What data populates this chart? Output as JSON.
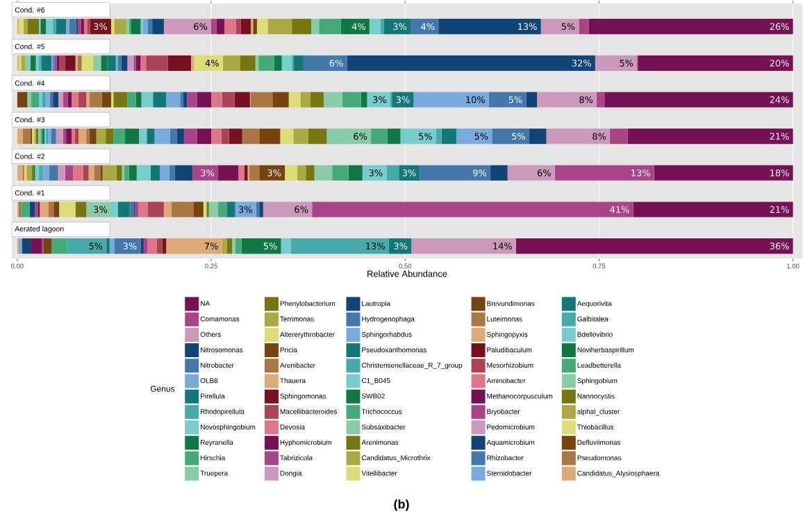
{
  "chart_data": {
    "type": "bar",
    "orientation": "horizontal",
    "stacked": true,
    "categories": [
      "Cond. #6",
      "Cond. #5",
      "Cond. #4",
      "Cond. #3",
      "Cond. #2",
      "Cond. #1",
      "Aerated lagoon"
    ],
    "xlabel": "Relative Abundance",
    "legend_title": "Genus",
    "legend": "bottom",
    "grid": "x",
    "xlim": [
      -0.007,
      1.012
    ],
    "xticks": [
      {
        "value": 0,
        "label": "0.00"
      },
      {
        "value": 0.25,
        "label": "0.25"
      },
      {
        "value": 0.5,
        "label": "0.50"
      },
      {
        "value": 0.75,
        "label": "0.75"
      },
      {
        "value": 1,
        "label": "1.00"
      }
    ],
    "annotations": [
      "(b)"
    ],
    "series": [
      {
        "name": "Candidatus_Alysiosphaera",
        "color": "#ddaa77",
        "values": [
          0.002,
          0.002,
          null,
          0.007,
          0.007,
          0.002,
          0.002
        ]
      },
      {
        "name": "Pseudomonas",
        "color": "#aa7744",
        "values": [
          null,
          null,
          null,
          0.01,
          0.002,
          0.003,
          null
        ]
      },
      {
        "name": "Defluviimonas",
        "color": "#774411",
        "values": [
          null,
          null,
          0.013,
          0.002,
          null,
          null,
          null
        ]
      },
      {
        "name": "Thiobacillus",
        "color": "#dddd77",
        "values": [
          0.006,
          0.003,
          null,
          0.003,
          0.003,
          null,
          null
        ]
      },
      {
        "name": "alphal_cluster",
        "color": "#aaaa44",
        "values": [
          0.005,
          0.005,
          null,
          0.002,
          0.007,
          null,
          null
        ]
      },
      {
        "name": "Nannocystis",
        "color": "#777711",
        "values": [
          0.015,
          null,
          null,
          0.003,
          0.002,
          null,
          null
        ]
      },
      {
        "name": "Sphingobium",
        "color": "#88ccaa",
        "values": [
          0.002,
          0.007,
          0.005,
          0.003,
          null,
          null,
          null
        ]
      },
      {
        "name": "Leadbetterella",
        "color": "#44aa77",
        "values": [
          null,
          null,
          0.01,
          0.002,
          null,
          0.011,
          null
        ]
      },
      {
        "name": "Noviherbaspirillum",
        "color": "#117744",
        "values": [
          0.007,
          0.007,
          null,
          0.003,
          0.002,
          null,
          null
        ]
      },
      {
        "name": "Bdellovibrio",
        "color": "#77cccc",
        "values": [
          0.009,
          0.004,
          0.004,
          0.002,
          0.005,
          null,
          null
        ]
      },
      {
        "name": "Galbitalea",
        "color": "#44aaaa",
        "values": [
          0.004,
          0.003,
          0.004,
          0.003,
          0.005,
          null,
          null
        ]
      },
      {
        "name": "Aequorivita",
        "color": "#117777",
        "values": [
          0.013,
          0.013,
          null,
          null,
          null,
          null,
          null
        ]
      },
      {
        "name": "Steroidobacter",
        "color": "#77aadd",
        "values": [
          0.004,
          0.002,
          0.006,
          0.004,
          0.008,
          null,
          0.004
        ]
      },
      {
        "name": "Rhizobacter",
        "color": "#4477aa",
        "values": [
          0.009,
          0.002,
          0.004,
          0.006,
          0.01,
          null,
          null
        ]
      },
      {
        "name": "Aquamicrobium",
        "color": "#114477",
        "values": [
          0.002,
          null,
          0.007,
          null,
          0.001,
          0.007,
          0.012
        ]
      },
      {
        "name": "Pedomicrobium",
        "color": "#cc99bb",
        "values": [
          null,
          null,
          0.006,
          0.009,
          0.01,
          null,
          null
        ]
      },
      {
        "name": "Bryobacter",
        "color": "#aa4488",
        "values": [
          0.004,
          0.003,
          0.006,
          0.004,
          0.01,
          0.004,
          null
        ]
      },
      {
        "name": "Methanocorpusculum",
        "color": "#771155",
        "values": [
          0.004,
          0.003,
          0.005,
          0.007,
          null,
          0.002,
          0.014
        ]
      },
      {
        "name": "Aminobacter",
        "color": "#dd7788",
        "values": [
          0.004,
          null,
          0.009,
          0.004,
          0.013,
          null,
          null
        ]
      },
      {
        "name": "Mesorhizobium",
        "color": "#aa4455",
        "values": [
          0.004,
          0.008,
          0.01,
          0.005,
          0.007,
          null,
          0.002
        ]
      },
      {
        "name": "Paludibaculum",
        "color": "#771122",
        "values": [
          0.027,
          0.013,
          null,
          null,
          null,
          null,
          null
        ],
        "value_labels": [
          "3%",
          null,
          null,
          null,
          null,
          null,
          null
        ]
      },
      {
        "name": "Sphingopyxis",
        "color": "#ddaa77",
        "values": [
          null,
          0.003,
          0.004,
          0.01,
          0.007,
          0.011,
          null
        ]
      },
      {
        "name": "Luteimonas",
        "color": "#aa7744",
        "values": [
          null,
          0.005,
          0.016,
          0.004,
          0.008,
          0.007,
          null
        ]
      },
      {
        "name": "Brevundimonas",
        "color": "#774411",
        "values": [
          null,
          null,
          0.012,
          0.009,
          0.003,
          0.007,
          0.01
        ]
      },
      {
        "name": "Vitellibacter",
        "color": "#dddd77",
        "values": [
          0.004,
          0.015,
          0.003,
          null,
          null,
          0.021,
          null
        ]
      },
      {
        "name": "Candidatus_Microthrix",
        "color": "#aaaa44",
        "values": [
          0.016,
          null,
          null,
          0.012,
          0.018,
          null,
          null
        ]
      },
      {
        "name": "Arenimonas",
        "color": "#777711",
        "values": [
          null,
          null,
          0.018,
          0.01,
          0.007,
          0.014,
          null
        ]
      },
      {
        "name": "Subsaxibacter",
        "color": "#88ccaa",
        "values": [
          0.003,
          0.01,
          null,
          null,
          0.003,
          0.032,
          null
        ],
        "value_labels": [
          null,
          null,
          null,
          null,
          null,
          "3%",
          null
        ]
      },
      {
        "name": "Trichococcus",
        "color": "#44aa77",
        "values": [
          0.003,
          null,
          0.011,
          0.015,
          0.006,
          null,
          0.02
        ]
      },
      {
        "name": "SWB02",
        "color": "#117744",
        "values": [
          0.012,
          0.008,
          0.007,
          0.018,
          0.01,
          null,
          null
        ]
      },
      {
        "name": "C1_B045",
        "color": "#77cccc",
        "values": [
          0.003,
          null,
          0.015,
          0.01,
          0.018,
          0.009,
          null
        ]
      },
      {
        "name": "Christensenellaceae_R_7_group",
        "color": "#44aaaa",
        "values": [
          null,
          null,
          null,
          null,
          null,
          null,
          0.051
        ],
        "value_labels": [
          null,
          null,
          null,
          null,
          null,
          null,
          "5%"
        ]
      },
      {
        "name": "Pseudoxanthomonas",
        "color": "#117777",
        "values": [
          null,
          0.011,
          0.017,
          0.01,
          0.012,
          0.015,
          0.004
        ]
      },
      {
        "name": "Sphingorhabdus",
        "color": "#77aadd",
        "values": [
          0.006,
          0.003,
          0.018,
          0.02,
          0.012,
          null,
          0.006
        ]
      },
      {
        "name": "Hydrogenophaga",
        "color": "#4477aa",
        "values": [
          0.006,
          0.004,
          0.004,
          0.009,
          0.007,
          0.005,
          0.034
        ],
        "value_labels": [
          null,
          null,
          null,
          null,
          null,
          null,
          "3%"
        ]
      },
      {
        "name": "Lautropia",
        "color": "#114477",
        "values": [
          0.015,
          0.008,
          0.005,
          0.009,
          0.023,
          0.002,
          0.004
        ]
      },
      {
        "name": "Dongia",
        "color": "#cc99bb",
        "values": [
          0.061,
          0.008,
          null,
          null,
          null,
          null,
          null
        ],
        "value_labels": [
          "6%",
          null,
          null,
          null,
          null,
          null,
          null
        ]
      },
      {
        "name": "Tabrizicola",
        "color": "#aa4488",
        "values": [
          0.007,
          0.003,
          0.013,
          0.017,
          0.033,
          0.004,
          0.005
        ],
        "value_labels": [
          null,
          null,
          null,
          null,
          "3%",
          null,
          null
        ]
      },
      {
        "name": "Hyphomicrobium",
        "color": "#771155",
        "values": [
          0.01,
          0.006,
          0.018,
          0.018,
          0.026,
          null,
          null
        ]
      },
      {
        "name": "Devosia",
        "color": "#dd7788",
        "values": [
          0.015,
          0.007,
          0.014,
          0.013,
          0.008,
          0.012,
          0.012
        ]
      },
      {
        "name": "Macellibacteroides",
        "color": "#aa4455",
        "values": [
          0.006,
          0.028,
          0.016,
          0.01,
          null,
          0.021,
          0.007
        ]
      },
      {
        "name": "Sphingomonas",
        "color": "#771122",
        "values": [
          0.013,
          0.03,
          0.02,
          0.017,
          0.004,
          null,
          0.005
        ]
      },
      {
        "name": "Thauera",
        "color": "#ddaa77",
        "values": [
          0.003,
          0.004,
          0.001,
          null,
          0.002,
          0.01,
          0.072
        ],
        "value_labels": [
          null,
          null,
          null,
          null,
          null,
          null,
          "7%"
        ]
      },
      {
        "name": "Arenibacter",
        "color": "#aa7744",
        "values": [
          null,
          null,
          0.028,
          0.022,
          0.013,
          0.028,
          null
        ]
      },
      {
        "name": "Pricia",
        "color": "#774411",
        "values": [
          0.005,
          null,
          0.021,
          0.027,
          0.033,
          0.013,
          null
        ],
        "value_labels": [
          null,
          null,
          null,
          null,
          "3%",
          null,
          null
        ]
      },
      {
        "name": "Altererythrobacter",
        "color": "#dddd77",
        "values": [
          0.014,
          0.037,
          0.015,
          0.017,
          0.016,
          0.004,
          null
        ],
        "value_labels": [
          null,
          "4%",
          null,
          null,
          null,
          null,
          null
        ]
      },
      {
        "name": "Terrimonas",
        "color": "#aaaa44",
        "values": [
          0.031,
          0.022,
          0.013,
          0.019,
          0.011,
          null,
          0.006
        ]
      },
      {
        "name": "Phenylobacterium",
        "color": "#777711",
        "values": [
          0.025,
          0.02,
          0.017,
          0.024,
          0.011,
          0.003,
          0.007
        ]
      },
      {
        "name": "Truepera",
        "color": "#88ccaa",
        "values": [
          0.01,
          0.004,
          0.024,
          0.057,
          0.023,
          0.012,
          0.004
        ],
        "value_labels": [
          null,
          null,
          null,
          "6%",
          null,
          null,
          null
        ]
      },
      {
        "name": "Hirschia",
        "color": "#44aa77",
        "values": [
          0.028,
          0.02,
          0.024,
          0.021,
          0.021,
          0.011,
          0.008
        ]
      },
      {
        "name": "Reyranella",
        "color": "#117744",
        "values": [
          0.037,
          0.01,
          0.008,
          0.017,
          0.018,
          null,
          0.051
        ],
        "value_labels": [
          "4%",
          null,
          null,
          null,
          null,
          null,
          "5%"
        ]
      },
      {
        "name": "Novosphingobium",
        "color": "#77cccc",
        "values": [
          0.014,
          0.013,
          0.03,
          0.046,
          0.031,
          null,
          0.013
        ],
        "value_labels": [
          null,
          null,
          "3%",
          "5%",
          "3%",
          null,
          null
        ]
      },
      {
        "name": "Rhodopirellula",
        "color": "#44aaaa",
        "values": [
          0.005,
          0.002,
          0.002,
          0.007,
          0.016,
          null,
          0.126
        ],
        "value_labels": [
          null,
          null,
          null,
          null,
          null,
          null,
          "13%"
        ]
      },
      {
        "name": "Pirellula",
        "color": "#117777",
        "values": [
          0.034,
          0.013,
          0.028,
          0.019,
          0.027,
          0.011,
          0.029
        ],
        "value_labels": [
          "3%",
          null,
          "3%",
          null,
          "3%",
          null,
          "3%"
        ]
      },
      {
        "name": "OLB8",
        "color": "#77aadd",
        "values": [
          null,
          null,
          0.097,
          0.046,
          null,
          0.027,
          null
        ],
        "value_labels": [
          null,
          null,
          "10%",
          "5%",
          null,
          "3%",
          null
        ]
      },
      {
        "name": "Nitrobacter",
        "color": "#4477aa",
        "values": [
          0.036,
          0.056,
          0.048,
          0.048,
          0.091,
          0.004,
          null
        ],
        "value_labels": [
          "4%",
          "6%",
          "5%",
          "5%",
          "9%",
          null,
          null
        ]
      },
      {
        "name": "Nitrosomonas",
        "color": "#114477",
        "values": [
          0.132,
          0.32,
          0.014,
          0.022,
          0.022,
          0.005,
          null
        ],
        "value_labels": [
          "13%",
          "32%",
          null,
          null,
          null,
          null,
          null
        ]
      },
      {
        "name": "Others",
        "color": "#cc99bb",
        "values": [
          0.049,
          0.054,
          0.077,
          0.082,
          0.061,
          0.063,
          0.135
        ],
        "value_labels": [
          "5%",
          "5%",
          "8%",
          "8%",
          "6%",
          "6%",
          "14%"
        ]
      },
      {
        "name": "Comamonas",
        "color": "#aa4488",
        "values": [
          0.013,
          0.001,
          0.01,
          0.023,
          0.128,
          0.414,
          null
        ],
        "value_labels": [
          null,
          null,
          null,
          null,
          "13%",
          "41%",
          null
        ]
      },
      {
        "name": "NA",
        "color": "#771155",
        "values": [
          0.263,
          0.2,
          0.243,
          0.213,
          0.179,
          0.206,
          0.357
        ],
        "value_labels": [
          "26%",
          "20%",
          "24%",
          "21%",
          "18%",
          "21%",
          "36%"
        ]
      }
    ]
  }
}
